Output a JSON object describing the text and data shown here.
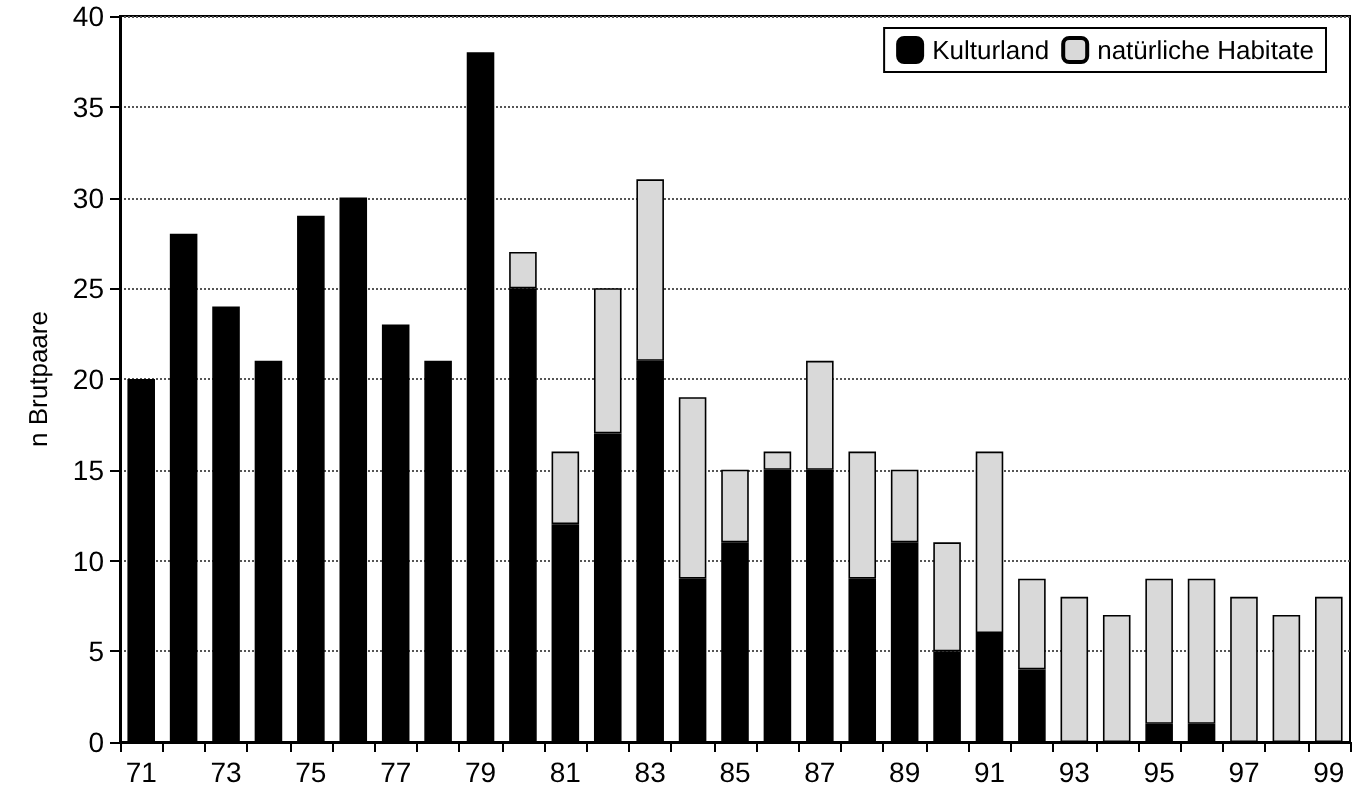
{
  "chart_data": {
    "type": "bar",
    "stacked": true,
    "ylabel": "n Brutpaare",
    "categories": [
      "71",
      null,
      "73",
      null,
      "75",
      null,
      "77",
      null,
      "79",
      null,
      "81",
      null,
      "83",
      null,
      "85",
      null,
      "87",
      null,
      "89",
      null,
      "91",
      null,
      "93",
      null,
      "95",
      null,
      "97",
      null,
      "99"
    ],
    "series": [
      {
        "name": "Kulturland",
        "color": "#000000",
        "values": [
          20,
          28,
          24,
          21,
          29,
          30,
          23,
          21,
          38,
          25,
          12,
          17,
          21,
          9,
          11,
          15,
          15,
          9,
          11,
          5,
          6,
          4,
          null,
          null,
          1,
          1,
          null,
          null,
          null
        ]
      },
      {
        "name": "natürliche Habitate",
        "color": "#d9d9d9",
        "values": [
          null,
          null,
          null,
          null,
          null,
          null,
          null,
          null,
          null,
          2,
          4,
          8,
          10,
          10,
          4,
          1,
          6,
          7,
          4,
          6,
          10,
          5,
          8,
          7,
          8,
          8,
          8,
          7,
          8
        ]
      }
    ],
    "ylim": [
      0,
      40
    ],
    "yticks": [
      0,
      5,
      10,
      15,
      20,
      25,
      30,
      35,
      40
    ],
    "grid": "y",
    "legend": "top right"
  }
}
